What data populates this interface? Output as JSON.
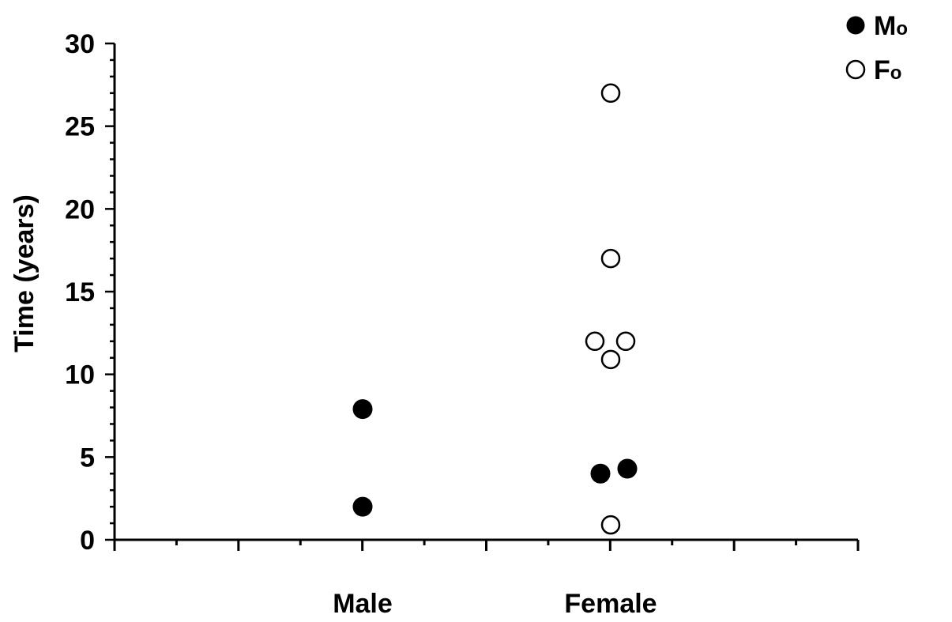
{
  "chart_data": {
    "type": "scatter",
    "title": "",
    "xlabel": "",
    "ylabel": "Time (years)",
    "categories": [
      "Male",
      "Female"
    ],
    "ylim": [
      0,
      30
    ],
    "yticks": [
      0,
      5,
      10,
      15,
      20,
      25,
      30
    ],
    "grid": false,
    "legend_position": "top-right",
    "series": [
      {
        "name": "Mo",
        "legend_main": "M",
        "legend_sub": "o",
        "marker": "filled-circle",
        "color": "#000000",
        "points": [
          {
            "category": "Male",
            "y": 7.9
          },
          {
            "category": "Male",
            "y": 2.0
          },
          {
            "category": "Female",
            "y": 4.0
          },
          {
            "category": "Female",
            "y": 4.3
          }
        ]
      },
      {
        "name": "Fo",
        "legend_main": "F",
        "legend_sub": "o",
        "marker": "open-circle",
        "color": "#000000",
        "points": [
          {
            "category": "Female",
            "y": 27.0
          },
          {
            "category": "Female",
            "y": 17.0
          },
          {
            "category": "Female",
            "y": 12.0
          },
          {
            "category": "Female",
            "y": 12.0
          },
          {
            "category": "Female",
            "y": 10.9
          },
          {
            "category": "Female",
            "y": 0.9
          }
        ]
      }
    ]
  }
}
